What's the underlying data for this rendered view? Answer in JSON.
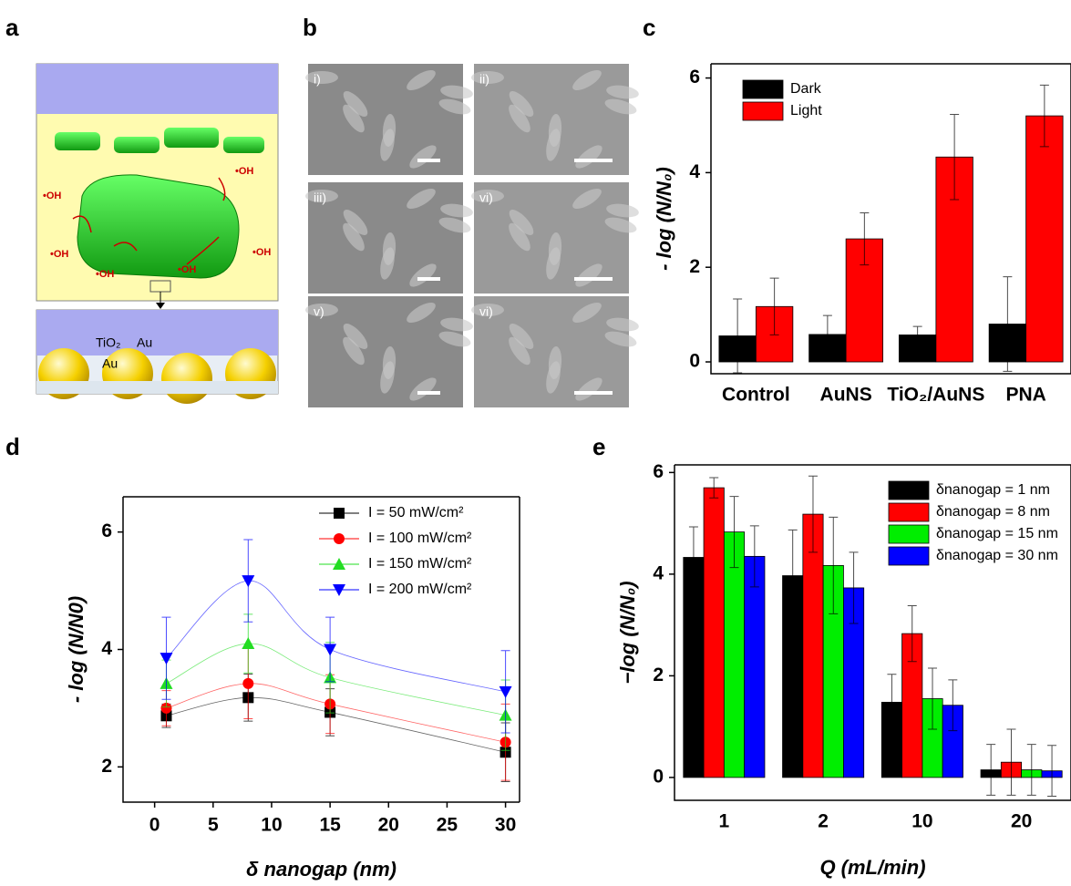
{
  "panel_labels": [
    "a",
    "b",
    "c",
    "d",
    "e"
  ],
  "diagram_a": {
    "radicals": [
      "•OH",
      "•OH",
      "•OH",
      "•OH",
      "•OH",
      "•OH"
    ],
    "materials": [
      "TiO₂",
      "Au",
      "Au"
    ]
  },
  "sem_b": {
    "labels": [
      "i)",
      "ii)",
      "iii)",
      "vi)",
      "v)",
      "vi)"
    ]
  },
  "chart_data": [
    {
      "type": "bar",
      "y_label": "- log (N/N₀)",
      "categories": [
        "Control",
        "AuNS",
        "TiO₂/AuNS",
        "PNA"
      ],
      "series": [
        {
          "name": "Dark",
          "color": "#000000",
          "values": [
            0.55,
            0.58,
            0.57,
            0.8
          ],
          "errors": [
            0.78,
            0.4,
            0.18,
            1.0
          ]
        },
        {
          "name": "Light",
          "color": "#ff0000",
          "values": [
            1.17,
            2.6,
            4.33,
            5.2
          ],
          "errors": [
            0.6,
            0.55,
            0.9,
            0.65
          ]
        }
      ],
      "ylim": [
        -0.25,
        6.3
      ],
      "yticks": [
        0,
        2,
        4,
        6
      ],
      "legend": "upper left"
    },
    {
      "type": "line",
      "x_label": "δ nanogap (nm)",
      "y_label": "- log (N/N0)",
      "x": [
        1,
        8,
        15,
        30
      ],
      "series": [
        {
          "name": "I = 50 mW/cm²",
          "color": "#000000",
          "marker": "square",
          "values": [
            2.87,
            3.18,
            2.93,
            2.25
          ],
          "errors": [
            0.2,
            0.4,
            0.4,
            0.5
          ]
        },
        {
          "name": "I = 100 mW/cm²",
          "color": "#ff0000",
          "marker": "circle",
          "values": [
            3.0,
            3.42,
            3.07,
            2.42
          ],
          "errors": [
            0.3,
            0.6,
            0.5,
            0.65
          ]
        },
        {
          "name": "I = 150 mW/cm²",
          "color": "#22dd22",
          "marker": "triangle-up",
          "values": [
            3.42,
            4.1,
            3.52,
            2.88
          ],
          "errors": [
            0.4,
            0.5,
            0.6,
            0.6
          ]
        },
        {
          "name": "I = 200 mW/cm²",
          "color": "#0000ff",
          "marker": "triangle-down",
          "values": [
            3.85,
            5.17,
            4.0,
            3.28
          ],
          "errors": [
            0.7,
            0.7,
            0.55,
            0.7
          ]
        }
      ],
      "xlim": [
        -2.7,
        31.2
      ],
      "xticks": [
        0,
        5,
        10,
        15,
        20,
        25,
        30
      ],
      "ylim": [
        1.4,
        6.6
      ],
      "yticks": [
        2,
        4,
        6
      ],
      "legend": "upper right"
    },
    {
      "type": "bar",
      "x_label": "Q (mL/min)",
      "y_label": "−log (N/N₀)",
      "categories": [
        "1",
        "2",
        "10",
        "20"
      ],
      "series": [
        {
          "name": "δnanogap = 1 nm",
          "color": "#000000",
          "values": [
            4.33,
            3.97,
            1.48,
            0.15
          ],
          "errors": [
            0.6,
            0.9,
            0.55,
            0.5
          ]
        },
        {
          "name": "δnanogap = 8 nm",
          "color": "#ff0000",
          "values": [
            5.7,
            5.18,
            2.83,
            0.3
          ],
          "errors": [
            0.2,
            0.75,
            0.55,
            0.65
          ]
        },
        {
          "name": "δnanogap = 15 nm",
          "color": "#00ee00",
          "values": [
            4.83,
            4.17,
            1.55,
            0.15
          ],
          "errors": [
            0.7,
            0.95,
            0.6,
            0.5
          ]
        },
        {
          "name": "δnanogap = 30 nm",
          "color": "#0000ff",
          "values": [
            4.35,
            3.73,
            1.42,
            0.13
          ],
          "errors": [
            0.6,
            0.7,
            0.5,
            0.5
          ]
        }
      ],
      "ylim": [
        -0.45,
        6.15
      ],
      "yticks": [
        0,
        2,
        4,
        6
      ],
      "legend": "upper right"
    }
  ]
}
